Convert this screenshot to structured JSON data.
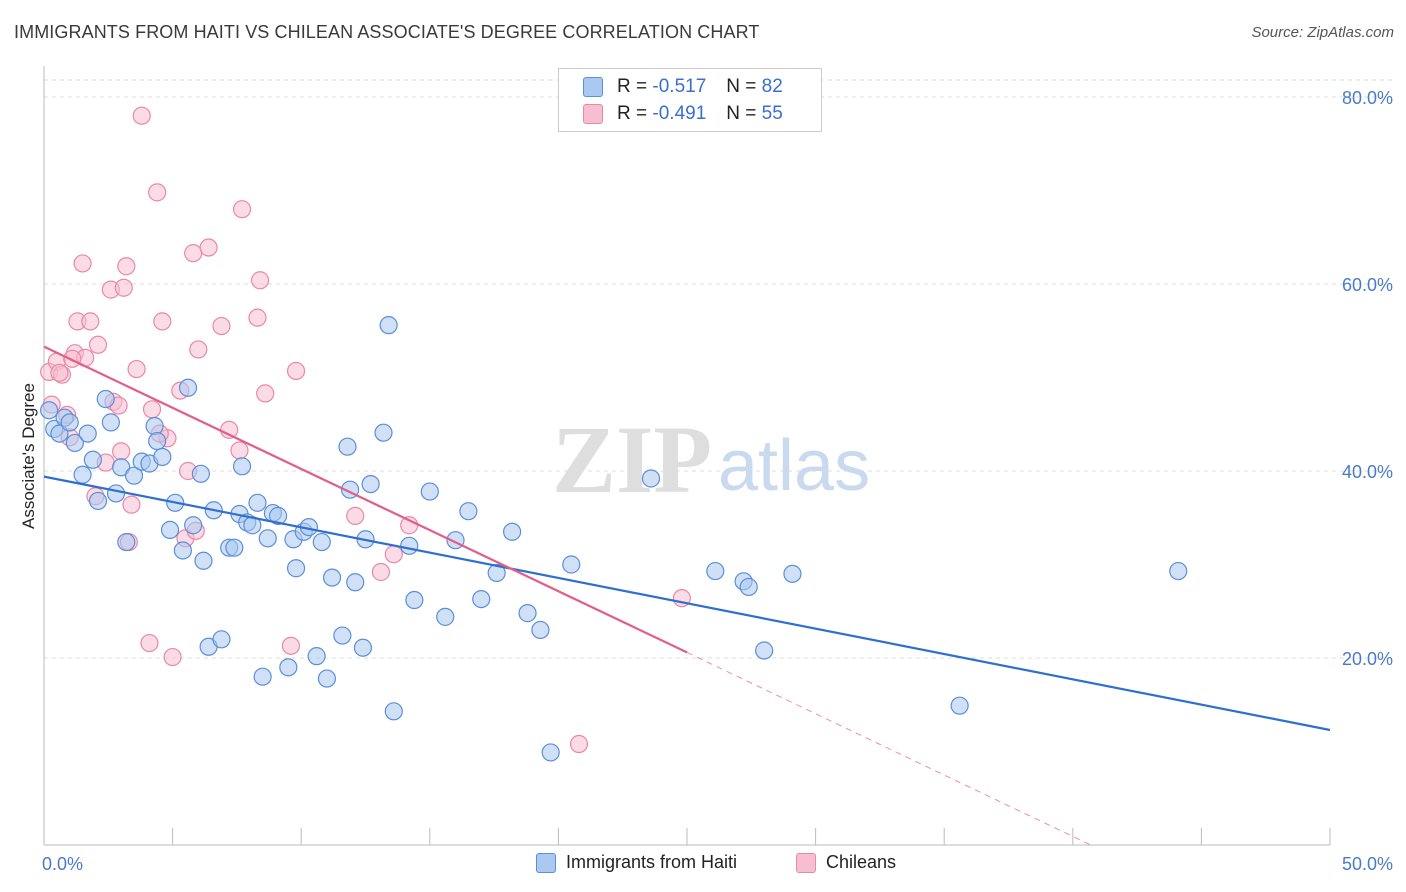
{
  "title": "IMMIGRANTS FROM HAITI VS CHILEAN ASSOCIATE'S DEGREE CORRELATION CHART",
  "source": "Source: ZipAtlas.com",
  "watermark": {
    "zip": "ZIP",
    "atlas": "atlas"
  },
  "legend": {
    "haiti": {
      "r_label": "R =",
      "r_value": "-0.517",
      "n_label": "N =",
      "n_value": "82"
    },
    "chile": {
      "r_label": "R =",
      "r_value": "-0.491",
      "n_label": "N =",
      "n_value": "55"
    }
  },
  "bottom_legend": {
    "haiti": "Immigrants from Haiti",
    "chile": "Chileans"
  },
  "chart_data": {
    "type": "scatter",
    "title": "IMMIGRANTS FROM HAITI VS CHILEAN ASSOCIATE'S DEGREE CORRELATION CHART",
    "ylabel": "Associate's Degree",
    "xlabel": "",
    "xlim": [
      0,
      50
    ],
    "ylim": [
      0,
      80
    ],
    "x_tick_labels": [
      "0.0%",
      "50.0%"
    ],
    "y_tick_labels": [
      "20.0%",
      "40.0%",
      "60.0%",
      "80.0%"
    ],
    "y_ticks": [
      20,
      40,
      60,
      80
    ],
    "grid": true,
    "colors": {
      "haiti_fill": "#aac8f0",
      "haiti_stroke": "#5b8fd8",
      "haiti_line": "#2f6fd0",
      "chile_fill": "#f7bdd0",
      "chile_stroke": "#e889a8",
      "chile_line": "#e0608a"
    },
    "series": [
      {
        "name": "Immigrants from Haiti",
        "key": "haiti",
        "points": [
          [
            0.2,
            46.5
          ],
          [
            0.4,
            44.5
          ],
          [
            0.6,
            44
          ],
          [
            0.8,
            45.7
          ],
          [
            1.0,
            45.2
          ],
          [
            1.2,
            43
          ],
          [
            1.5,
            39.6
          ],
          [
            1.7,
            44
          ],
          [
            1.9,
            41.2
          ],
          [
            2.1,
            36.8
          ],
          [
            2.4,
            47.7
          ],
          [
            2.6,
            45.2
          ],
          [
            2.8,
            37.6
          ],
          [
            3.0,
            40.4
          ],
          [
            3.2,
            32.4
          ],
          [
            3.5,
            39.5
          ],
          [
            3.8,
            41
          ],
          [
            4.1,
            40.8
          ],
          [
            4.3,
            44.8
          ],
          [
            4.4,
            43.2
          ],
          [
            4.6,
            41.5
          ],
          [
            4.9,
            33.7
          ],
          [
            5.1,
            36.6
          ],
          [
            5.4,
            31.5
          ],
          [
            5.6,
            48.9
          ],
          [
            5.8,
            34.2
          ],
          [
            6.1,
            39.7
          ],
          [
            6.2,
            30.4
          ],
          [
            6.4,
            21.2
          ],
          [
            6.6,
            35.8
          ],
          [
            6.9,
            22
          ],
          [
            7.2,
            31.8
          ],
          [
            7.4,
            31.8
          ],
          [
            7.6,
            35.4
          ],
          [
            7.7,
            40.5
          ],
          [
            7.9,
            34.5
          ],
          [
            8.1,
            34.2
          ],
          [
            8.3,
            36.6
          ],
          [
            8.5,
            18
          ],
          [
            8.7,
            32.8
          ],
          [
            8.9,
            35.5
          ],
          [
            9.1,
            35.2
          ],
          [
            9.5,
            19
          ],
          [
            9.7,
            32.7
          ],
          [
            9.8,
            29.6
          ],
          [
            10.1,
            33.5
          ],
          [
            10.3,
            34
          ],
          [
            10.6,
            20.2
          ],
          [
            10.8,
            32.4
          ],
          [
            11.0,
            17.8
          ],
          [
            11.2,
            28.6
          ],
          [
            11.6,
            22.4
          ],
          [
            11.8,
            42.6
          ],
          [
            11.9,
            38
          ],
          [
            12.1,
            28.1
          ],
          [
            12.4,
            21.1
          ],
          [
            12.5,
            32.7
          ],
          [
            12.7,
            38.6
          ],
          [
            13.2,
            44.1
          ],
          [
            13.4,
            55.6
          ],
          [
            13.6,
            14.3
          ],
          [
            14.2,
            32
          ],
          [
            14.4,
            26.2
          ],
          [
            15.0,
            37.8
          ],
          [
            15.6,
            24.4
          ],
          [
            16.0,
            32.6
          ],
          [
            16.5,
            35.7
          ],
          [
            17.0,
            26.3
          ],
          [
            17.6,
            29.1
          ],
          [
            18.2,
            33.5
          ],
          [
            18.8,
            24.8
          ],
          [
            19.3,
            23
          ],
          [
            19.7,
            9.9
          ],
          [
            20.5,
            30
          ],
          [
            23.6,
            39.2
          ],
          [
            26.1,
            29.3
          ],
          [
            27.2,
            28.2
          ],
          [
            27.4,
            27.6
          ],
          [
            28.0,
            20.8
          ],
          [
            29.1,
            29
          ],
          [
            35.6,
            14.9
          ],
          [
            44.1,
            29.3
          ]
        ]
      },
      {
        "name": "Chileans",
        "key": "chile",
        "points": [
          [
            0.2,
            50.6
          ],
          [
            0.3,
            47.1
          ],
          [
            0.5,
            51.7
          ],
          [
            0.7,
            50.3
          ],
          [
            0.9,
            46
          ],
          [
            1.0,
            43.6
          ],
          [
            1.2,
            52.6
          ],
          [
            1.3,
            56
          ],
          [
            1.5,
            62.2
          ],
          [
            1.6,
            52.1
          ],
          [
            1.8,
            56
          ],
          [
            2.0,
            37.3
          ],
          [
            2.1,
            53.5
          ],
          [
            2.4,
            40.9
          ],
          [
            2.6,
            59.4
          ],
          [
            2.7,
            47.4
          ],
          [
            3.0,
            42.1
          ],
          [
            3.1,
            59.6
          ],
          [
            3.2,
            61.9
          ],
          [
            3.3,
            32.4
          ],
          [
            3.4,
            36.4
          ],
          [
            3.6,
            50.9
          ],
          [
            3.8,
            78
          ],
          [
            4.1,
            21.6
          ],
          [
            4.2,
            46.6
          ],
          [
            4.4,
            69.8
          ],
          [
            4.6,
            56
          ],
          [
            4.8,
            43.5
          ],
          [
            5.0,
            20.1
          ],
          [
            5.3,
            48.6
          ],
          [
            5.5,
            32.8
          ],
          [
            5.6,
            40
          ],
          [
            5.8,
            63.3
          ],
          [
            5.9,
            33.6
          ],
          [
            6.0,
            53
          ],
          [
            6.4,
            63.9
          ],
          [
            6.9,
            55.5
          ],
          [
            7.2,
            44.4
          ],
          [
            7.6,
            42.2
          ],
          [
            7.7,
            68
          ],
          [
            8.3,
            56.4
          ],
          [
            8.4,
            60.4
          ],
          [
            8.6,
            48.3
          ],
          [
            9.6,
            21.3
          ],
          [
            9.8,
            50.7
          ],
          [
            12.1,
            35.2
          ],
          [
            13.1,
            29.2
          ],
          [
            13.6,
            31.1
          ],
          [
            14.2,
            34.2
          ],
          [
            20.8,
            10.8
          ],
          [
            24.8,
            26.4
          ],
          [
            1.1,
            52
          ],
          [
            0.6,
            50.5
          ],
          [
            2.9,
            47
          ],
          [
            4.5,
            44
          ]
        ]
      }
    ],
    "trendlines": [
      {
        "series": "Immigrants from Haiti",
        "x": [
          0,
          50
        ],
        "y": [
          39.4,
          12.3
        ],
        "style": "solid"
      },
      {
        "series": "Chileans",
        "x": [
          0,
          25
        ],
        "y": [
          53.3,
          20.6
        ],
        "style": "solid"
      },
      {
        "series": "Chileans",
        "x": [
          25,
          40.7
        ],
        "y": [
          20.6,
          0
        ],
        "style": "dashed"
      }
    ]
  }
}
